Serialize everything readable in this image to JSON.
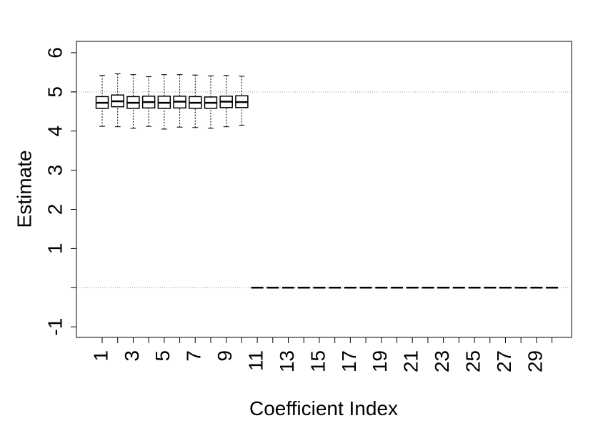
{
  "chart_data": {
    "type": "boxplot",
    "x_label": "Coefficient Index",
    "y_label": "Estimate",
    "categories": [
      "1",
      null,
      "3",
      null,
      "5",
      null,
      "7",
      null,
      "9",
      null,
      "11",
      null,
      "13",
      null,
      "15",
      null,
      "17",
      null,
      "19",
      null,
      "21",
      null,
      "23",
      null,
      "25",
      null,
      "27",
      null,
      "29",
      null
    ],
    "boxes": [
      {
        "min": 4.12,
        "q1": 4.58,
        "median": 4.72,
        "q3": 4.88,
        "max": 5.42
      },
      {
        "min": 4.11,
        "q1": 4.62,
        "median": 4.76,
        "q3": 4.92,
        "max": 5.46
      },
      {
        "min": 4.07,
        "q1": 4.58,
        "median": 4.72,
        "q3": 4.88,
        "max": 5.44
      },
      {
        "min": 4.12,
        "q1": 4.59,
        "median": 4.74,
        "q3": 4.89,
        "max": 5.39
      },
      {
        "min": 4.05,
        "q1": 4.58,
        "median": 4.72,
        "q3": 4.89,
        "max": 5.44
      },
      {
        "min": 4.1,
        "q1": 4.59,
        "median": 4.75,
        "q3": 4.89,
        "max": 5.44
      },
      {
        "min": 4.09,
        "q1": 4.58,
        "median": 4.72,
        "q3": 4.88,
        "max": 5.43
      },
      {
        "min": 4.07,
        "q1": 4.58,
        "median": 4.72,
        "q3": 4.87,
        "max": 5.41
      },
      {
        "min": 4.11,
        "q1": 4.6,
        "median": 4.75,
        "q3": 4.89,
        "max": 5.42
      },
      {
        "min": 4.15,
        "q1": 4.6,
        "median": 4.74,
        "q3": 4.9,
        "max": 5.4
      },
      {
        "min": 0,
        "q1": 0,
        "median": 0,
        "q3": 0,
        "max": 0
      },
      {
        "min": 0,
        "q1": 0,
        "median": 0,
        "q3": 0,
        "max": 0
      },
      {
        "min": 0,
        "q1": 0,
        "median": 0,
        "q3": 0,
        "max": 0
      },
      {
        "min": 0,
        "q1": 0,
        "median": 0,
        "q3": 0,
        "max": 0
      },
      {
        "min": 0,
        "q1": 0,
        "median": 0,
        "q3": 0,
        "max": 0
      },
      {
        "min": 0,
        "q1": 0,
        "median": 0,
        "q3": 0,
        "max": 0
      },
      {
        "min": 0,
        "q1": 0,
        "median": 0,
        "q3": 0,
        "max": 0
      },
      {
        "min": 0,
        "q1": 0,
        "median": 0,
        "q3": 0,
        "max": 0
      },
      {
        "min": 0,
        "q1": 0,
        "median": 0,
        "q3": 0,
        "max": 0
      },
      {
        "min": 0,
        "q1": 0,
        "median": 0,
        "q3": 0,
        "max": 0
      },
      {
        "min": 0,
        "q1": 0,
        "median": 0,
        "q3": 0,
        "max": 0
      },
      {
        "min": 0,
        "q1": 0,
        "median": 0,
        "q3": 0,
        "max": 0
      },
      {
        "min": 0,
        "q1": 0,
        "median": 0,
        "q3": 0,
        "max": 0
      },
      {
        "min": 0,
        "q1": 0,
        "median": 0,
        "q3": 0,
        "max": 0
      },
      {
        "min": 0,
        "q1": 0,
        "median": 0,
        "q3": 0,
        "max": 0
      },
      {
        "min": 0,
        "q1": 0,
        "median": 0,
        "q3": 0,
        "max": 0
      },
      {
        "min": 0,
        "q1": 0,
        "median": 0,
        "q3": 0,
        "max": 0
      },
      {
        "min": 0,
        "q1": 0,
        "median": 0,
        "q3": 0,
        "max": 0
      },
      {
        "min": 0,
        "q1": 0,
        "median": 0,
        "q3": 0,
        "max": 0
      },
      {
        "min": 0,
        "q1": 0,
        "median": 0,
        "q3": 0,
        "max": 0
      }
    ],
    "color": "#000000",
    "ylim": [
      -1.27,
      6.29
    ],
    "yticks": [
      -1,
      1,
      2,
      3,
      4,
      5,
      6
    ],
    "hlines": [
      0,
      5
    ]
  }
}
